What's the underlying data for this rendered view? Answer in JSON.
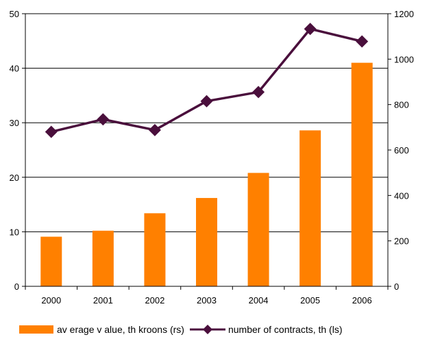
{
  "chart_data": {
    "type": "bar+line",
    "categories": [
      "2000",
      "2001",
      "2002",
      "2003",
      "2004",
      "2005",
      "2006"
    ],
    "series": [
      {
        "name": "av erage v alue, th kroons (rs)",
        "type": "bar",
        "axis": "left",
        "color": "#ff8000",
        "values": [
          9.1,
          10.2,
          13.4,
          16.2,
          20.8,
          28.6,
          41.0
        ]
      },
      {
        "name": "number of contracts, th (ls)",
        "type": "line",
        "axis": "right",
        "color": "#4a0f3c",
        "marker": "diamond",
        "values": [
          680,
          735,
          688,
          815,
          855,
          1133,
          1078
        ]
      }
    ],
    "left_axis": {
      "ylim": [
        0,
        50
      ],
      "ticks": [
        0,
        10,
        20,
        30,
        40,
        50
      ]
    },
    "right_axis": {
      "ylim": [
        0,
        1200
      ],
      "ticks": [
        0,
        200,
        400,
        600,
        800,
        1000,
        1200
      ]
    },
    "grid": "horizontal",
    "legend_position": "bottom"
  }
}
